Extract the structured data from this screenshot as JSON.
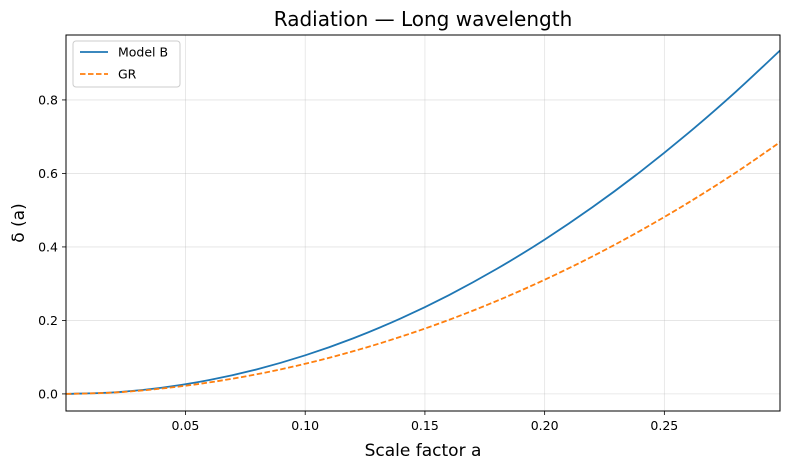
{
  "chart_data": {
    "type": "line",
    "title": "Radiation — Long wavelength",
    "xlabel": "Scale factor a",
    "ylabel": "δ (a)",
    "xlim": [
      0.0001,
      0.2983
    ],
    "ylim": [
      -0.0465,
      0.9767
    ],
    "xticks": [
      0.05,
      0.1,
      0.15,
      0.2,
      0.25
    ],
    "xtick_labels": [
      "0.05",
      "0.10",
      "0.15",
      "0.20",
      "0.25"
    ],
    "yticks": [
      0.0,
      0.2,
      0.4,
      0.6,
      0.8
    ],
    "ytick_labels": [
      "0.0",
      "0.2",
      "0.4",
      "0.6",
      "0.8"
    ],
    "grid": true,
    "legend_position": "top-left",
    "x": [
      0.0001,
      0.02,
      0.04,
      0.06,
      0.08,
      0.1,
      0.12,
      0.14,
      0.16,
      0.18,
      0.2,
      0.22,
      0.24,
      0.26,
      0.28,
      0.2983
    ],
    "series": [
      {
        "name": "Model B",
        "color": "#1f77b4",
        "style": "solid",
        "values": [
          0.0,
          0.0042,
          0.0168,
          0.0378,
          0.0672,
          0.105,
          0.1512,
          0.2058,
          0.2688,
          0.3402,
          0.42,
          0.5082,
          0.6048,
          0.7098,
          0.8232,
          0.9345
        ]
      },
      {
        "name": "GR",
        "color": "#ff7f0e",
        "style": "dashed",
        "values": [
          0.0,
          0.0037,
          0.0146,
          0.0313,
          0.0538,
          0.082,
          0.116,
          0.1558,
          0.2014,
          0.253,
          0.3106,
          0.3743,
          0.4442,
          0.5204,
          0.603,
          0.685
        ]
      }
    ]
  }
}
